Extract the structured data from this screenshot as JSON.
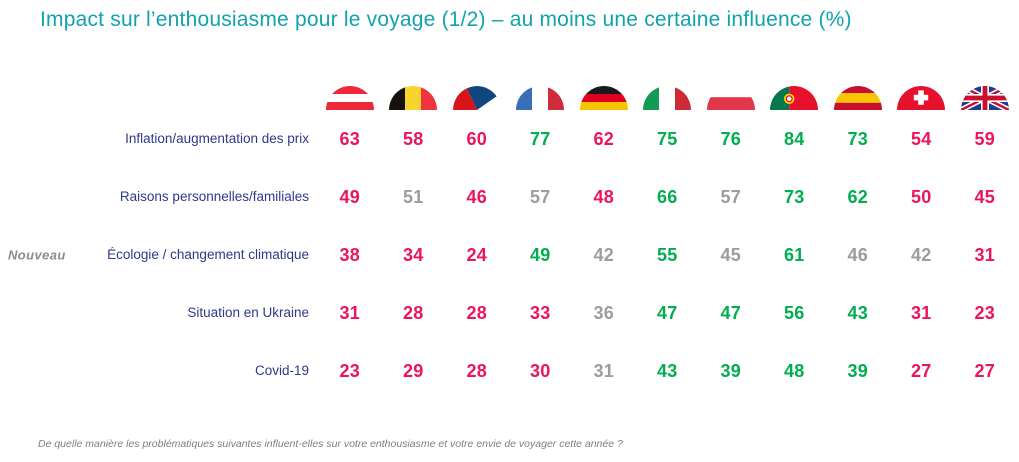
{
  "title": "Impact sur l’enthousiasme pour le voyage (1/2) – au moins une certaine influence (%)",
  "new_label": "Nouveau",
  "footnote": "De quelle manière les problématiques suivantes influent-elles sur votre enthousiasme et votre envie de voyager cette année ?",
  "colors": {
    "title_teal": "#10A3AE",
    "label_navy": "#2D3A8C",
    "pink": "#EC135F",
    "green": "#00AE50",
    "grey": "#9C9C9C"
  },
  "chart_data": {
    "type": "table",
    "title": "Impact sur l’enthousiasme pour le voyage (1/2) – au moins une certaine influence (%)",
    "columns": [
      "Austria",
      "Belgium",
      "Czech Republic",
      "France",
      "Germany",
      "Italy",
      "Poland",
      "Portugal",
      "Spain",
      "Switzerland",
      "United Kingdom"
    ],
    "value_unit": "%",
    "rows": [
      {
        "label": "Inflation/augmentation des prix",
        "is_new": false,
        "values": [
          63,
          58,
          60,
          77,
          62,
          75,
          76,
          84,
          73,
          54,
          59
        ],
        "colors": [
          "pink",
          "pink",
          "pink",
          "green",
          "pink",
          "green",
          "green",
          "green",
          "green",
          "pink",
          "pink"
        ]
      },
      {
        "label": "Raisons personnelles/familiales",
        "is_new": false,
        "values": [
          49,
          51,
          46,
          57,
          48,
          66,
          57,
          73,
          62,
          50,
          45
        ],
        "colors": [
          "pink",
          "grey",
          "pink",
          "grey",
          "pink",
          "green",
          "grey",
          "green",
          "green",
          "pink",
          "pink"
        ]
      },
      {
        "label": "Écologie / changement climatique",
        "is_new": true,
        "values": [
          38,
          34,
          24,
          49,
          42,
          55,
          45,
          61,
          46,
          42,
          31
        ],
        "colors": [
          "pink",
          "pink",
          "pink",
          "green",
          "grey",
          "green",
          "grey",
          "green",
          "grey",
          "grey",
          "pink"
        ]
      },
      {
        "label": "Situation en Ukraine",
        "is_new": false,
        "values": [
          31,
          28,
          28,
          33,
          36,
          47,
          47,
          56,
          43,
          31,
          23
        ],
        "colors": [
          "pink",
          "pink",
          "pink",
          "pink",
          "grey",
          "green",
          "green",
          "green",
          "green",
          "pink",
          "pink"
        ]
      },
      {
        "label": "Covid-19",
        "is_new": false,
        "values": [
          23,
          29,
          28,
          30,
          31,
          43,
          39,
          48,
          39,
          27,
          27
        ],
        "colors": [
          "pink",
          "pink",
          "pink",
          "pink",
          "grey",
          "green",
          "green",
          "green",
          "green",
          "pink",
          "pink"
        ]
      }
    ]
  }
}
